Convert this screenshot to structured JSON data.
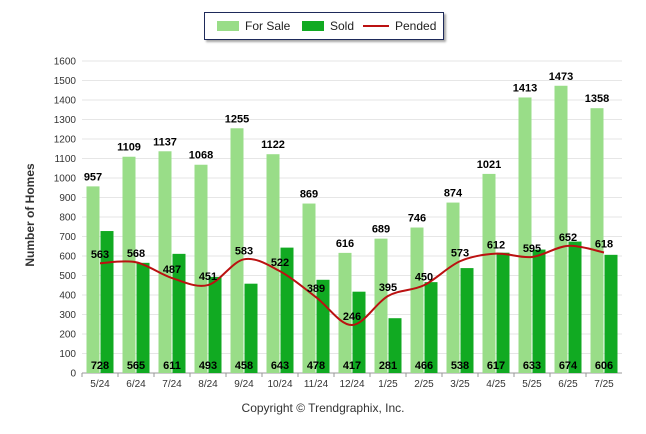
{
  "chart_data": {
    "type": "bar",
    "title": "",
    "xlabel": "",
    "ylabel": "Number of Homes",
    "ylim": [
      0,
      1600
    ],
    "yticks": [
      0,
      100,
      200,
      300,
      400,
      500,
      600,
      700,
      800,
      900,
      1000,
      1100,
      1200,
      1300,
      1400,
      1500,
      1600
    ],
    "grid": true,
    "legend": "top-center",
    "categories": [
      "5/24",
      "6/24",
      "7/24",
      "8/24",
      "9/24",
      "10/24",
      "11/24",
      "12/24",
      "1/25",
      "2/25",
      "3/25",
      "4/25",
      "5/25",
      "6/25",
      "7/25"
    ],
    "series": [
      {
        "name": "For Sale",
        "kind": "bar",
        "color": "#99dd88",
        "values": [
          957,
          1109,
          1137,
          1068,
          1255,
          1122,
          869,
          616,
          689,
          746,
          874,
          1021,
          1413,
          1473,
          1358
        ]
      },
      {
        "name": "Sold",
        "kind": "bar",
        "color": "#11aa22",
        "values": [
          728,
          565,
          611,
          493,
          458,
          643,
          478,
          417,
          281,
          466,
          538,
          617,
          633,
          674,
          606
        ]
      },
      {
        "name": "Pended",
        "kind": "line",
        "color": "#bb1111",
        "values": [
          563,
          568,
          487,
          451,
          583,
          522,
          389,
          246,
          395,
          450,
          573,
          612,
          595,
          652,
          618
        ]
      }
    ]
  },
  "footer": {
    "copyright": "Copyright © Trendgraphix, Inc."
  }
}
